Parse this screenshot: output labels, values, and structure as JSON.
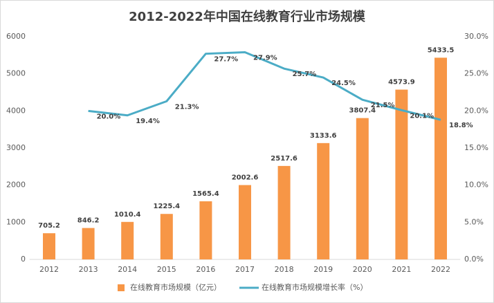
{
  "chart_data": {
    "type": "combo",
    "title": "2012-2022年中国在线教育行业市场规模",
    "categories": [
      "2012",
      "2013",
      "2014",
      "2015",
      "2016",
      "2017",
      "2018",
      "2019",
      "2020",
      "2021",
      "2022"
    ],
    "series": [
      {
        "name": "在线教育市场规模（亿元）",
        "type": "bar",
        "color": "#f79646",
        "values": [
          705.2,
          846.2,
          1010.4,
          1225.4,
          1565.4,
          2002.6,
          2517.6,
          3133.6,
          3807.4,
          4573.9,
          5433.5
        ]
      },
      {
        "name": "在线教育市场规模增长率（%）",
        "type": "line",
        "axis": "y2",
        "color": "#4bacc6",
        "values": [
          null,
          20.0,
          19.4,
          21.3,
          27.7,
          27.9,
          25.7,
          24.5,
          21.5,
          20.1,
          18.8
        ],
        "value_labels": [
          null,
          "20.0%",
          "19.4%",
          "21.3%",
          "27.7%",
          "27.9%",
          "25.7%",
          "24.5%",
          "21.5%",
          "20.1%",
          "18.8%"
        ]
      }
    ],
    "ylim": [
      0,
      6000
    ],
    "yticks": [
      0,
      1000,
      2000,
      3000,
      4000,
      5000,
      6000
    ],
    "y2lim": [
      0,
      30
    ],
    "y2ticks": [
      {
        "value": 0,
        "label": "0.0%"
      },
      {
        "value": 5,
        "label": "5.0%"
      },
      {
        "value": 10,
        "label": "10.0%"
      },
      {
        "value": 15,
        "label": "15.0%"
      },
      {
        "value": 20,
        "label": "20.0%"
      },
      {
        "value": 25,
        "label": "25.0%"
      },
      {
        "value": 30,
        "label": "30.0%"
      }
    ],
    "grid": false,
    "legend": "bottom"
  }
}
